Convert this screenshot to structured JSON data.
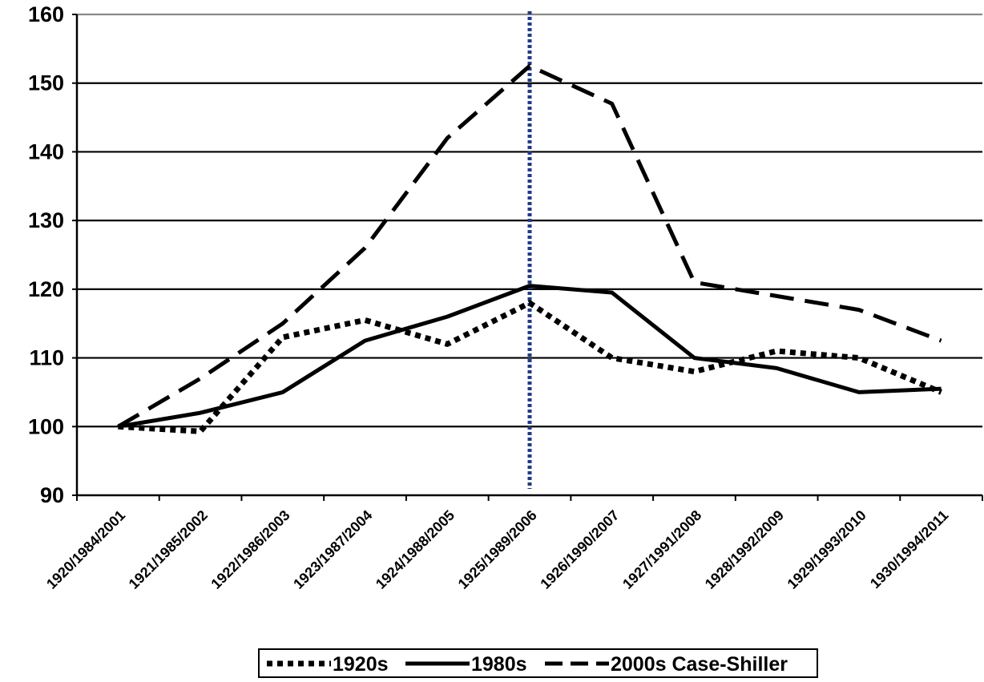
{
  "chart_data": {
    "type": "line",
    "title": "",
    "xlabel": "",
    "ylabel": "",
    "categories": [
      "1920/1984/2001",
      "1921/1985/2002",
      "1922/1986/2003",
      "1923/1987/2004",
      "1924/1988/2005",
      "1925/1989/2006",
      "1926/1990/2007",
      "1927/1991/2008",
      "1928/1992/2009",
      "1929/1993/2010",
      "1930/1994/2011"
    ],
    "yticks": [
      "90",
      "100",
      "110",
      "120",
      "130",
      "140",
      "150",
      "160"
    ],
    "ylim": [
      90,
      160
    ],
    "grid": "horizontal",
    "legend_position": "bottom",
    "reference_line": {
      "category": "1925/1989/2006",
      "color": "#1f3a8a",
      "style": "dotted"
    },
    "series": [
      {
        "name": "1920s",
        "style": "dotted",
        "color": "#000000",
        "values": [
          100,
          99.3,
          113,
          115.5,
          112,
          118,
          110,
          108,
          111,
          110,
          105
        ]
      },
      {
        "name": "1980s",
        "style": "solid",
        "color": "#000000",
        "values": [
          100,
          102,
          105,
          112.5,
          116,
          120.5,
          119.5,
          110,
          108.5,
          105,
          105.5
        ]
      },
      {
        "name": "2000s Case-Shiller",
        "style": "dashed",
        "color": "#000000",
        "values": [
          100,
          107,
          115,
          126,
          142,
          152.5,
          147,
          121,
          119,
          117,
          112.5
        ]
      }
    ]
  }
}
